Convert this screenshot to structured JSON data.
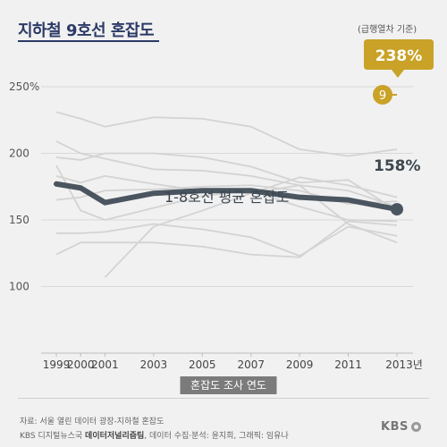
{
  "title": "지하철 9호선 혼잡도",
  "express_note": "(급행열차 기준)",
  "source_line": "자료: 서울 열린 데이터 광장-지하철 혼잡도",
  "credit_prefix": "KBS 디지털뉴스국 ",
  "credit_team": "데이터저널리즘팀",
  "credit_rest": ", 데이터 수집·분석: 윤지희, 그래픽: 임유나",
  "logo_text": "KBS",
  "colors": {
    "background": "#f1f1f1",
    "avg_line": "#4a5560",
    "other_lines": "#d3d3d3",
    "line9_badge": "#c9a227",
    "callout": "#c9a227",
    "title": "#2b3a66"
  },
  "chart_data": {
    "type": "line",
    "xlabel": "혼잡도 조사 연도",
    "ylabel": "",
    "ylim": [
      50,
      250
    ],
    "x_ticks": [
      "1999",
      "2000",
      "2001",
      "2003",
      "2005",
      "2007",
      "2009",
      "2011",
      "2013년"
    ],
    "x_values": [
      1999,
      2000,
      2001,
      2003,
      2005,
      2007,
      2009,
      2011,
      2013
    ],
    "y_ticks": [
      "250%",
      "200",
      "150",
      "100"
    ],
    "y_tick_values": [
      250,
      200,
      150,
      100
    ],
    "grid": true,
    "average_series": {
      "name": "1-8호선 평균 혼잡도",
      "x": [
        1999,
        2000,
        2001,
        2003,
        2005,
        2007,
        2009,
        2011,
        2013
      ],
      "y": [
        177,
        174,
        163,
        170,
        172,
        172,
        167,
        165,
        158
      ],
      "end_label": "158%"
    },
    "background_series": [
      {
        "x": [
          1999,
          2000,
          2001,
          2003,
          2005,
          2007,
          2009,
          2011,
          2013
        ],
        "y": [
          231,
          226,
          220,
          227,
          226,
          220,
          203,
          198,
          203
        ]
      },
      {
        "x": [
          1999,
          2000,
          2001,
          2003,
          2005,
          2007,
          2009,
          2011,
          2013
        ],
        "y": [
          209,
          200,
          196,
          188,
          187,
          183,
          176,
          172,
          160
        ]
      },
      {
        "x": [
          1999,
          2000,
          2001,
          2003,
          2005,
          2007,
          2009,
          2011,
          2013
        ],
        "y": [
          197,
          195,
          200,
          200,
          197,
          190,
          178,
          180,
          157
        ]
      },
      {
        "x": [
          1999,
          2000,
          2001,
          2003,
          2005,
          2007,
          2009,
          2011,
          2013
        ],
        "y": [
          183,
          178,
          183,
          177,
          172,
          170,
          182,
          176,
          167
        ]
      },
      {
        "x": [
          1999,
          2000,
          2001,
          2003,
          2005,
          2007,
          2009,
          2011,
          2013
        ],
        "y": [
          165,
          167,
          172,
          173,
          175,
          176,
          172,
          162,
          164
        ]
      },
      {
        "x": [
          1999,
          2000,
          2001,
          2003,
          2005,
          2007,
          2009,
          2011,
          2013
        ],
        "y": [
          191,
          157,
          150,
          159,
          168,
          172,
          160,
          150,
          149
        ]
      },
      {
        "x": [
          1999,
          2000,
          2001,
          2003,
          2005,
          2007,
          2009,
          2011,
          2013
        ],
        "y": [
          140,
          140,
          141,
          147,
          143,
          137,
          123,
          145,
          138
        ]
      },
      {
        "x": [
          1999,
          2000,
          2001,
          2003,
          2005,
          2007,
          2009,
          2011,
          2013
        ],
        "y": [
          124,
          133,
          133,
          133,
          130,
          124,
          122,
          149,
          146
        ]
      },
      {
        "x": [
          2001,
          2003,
          2005,
          2007,
          2009,
          2011,
          2013
        ],
        "y": [
          107,
          145,
          157,
          170,
          176,
          147,
          133
        ]
      }
    ],
    "line9": {
      "name": "9",
      "value_label": "238%",
      "value": 238
    }
  }
}
